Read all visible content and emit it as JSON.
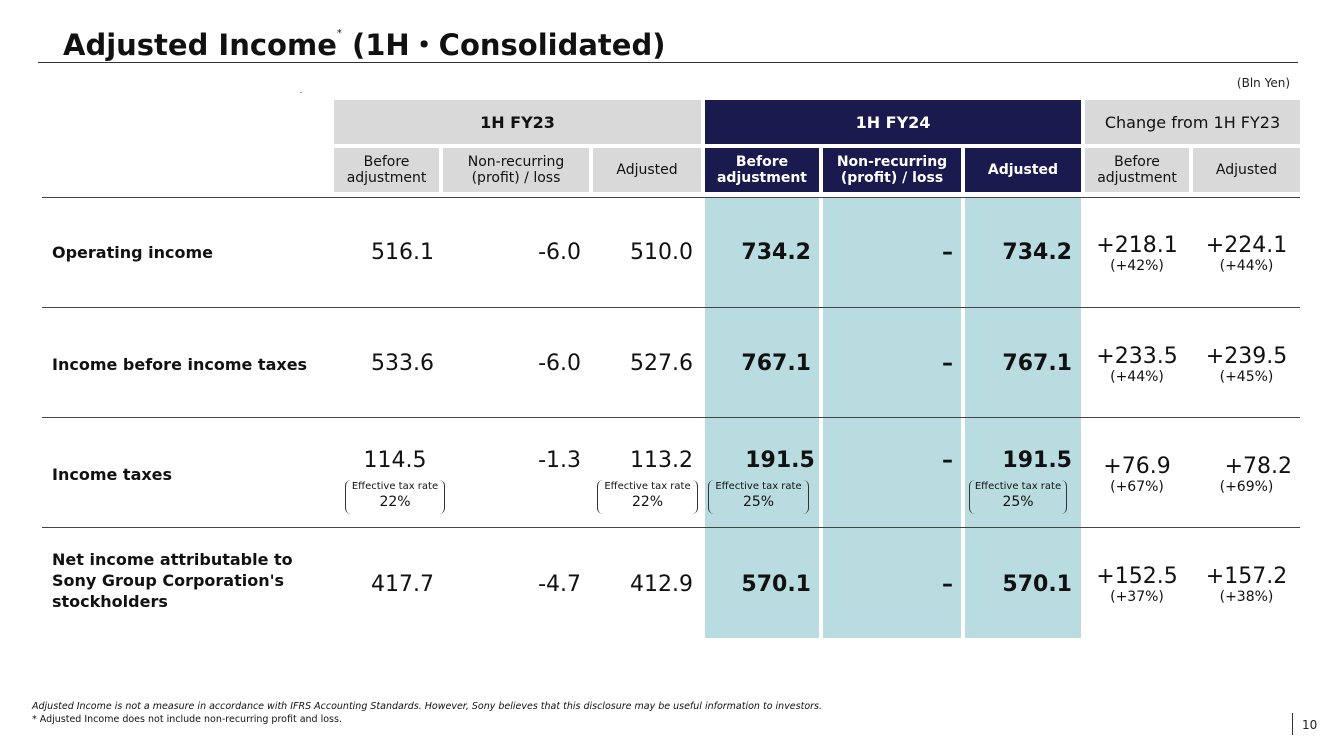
{
  "title": {
    "main": "Adjusted Income",
    "asterisk": "*",
    "suffix": " (1H・Consolidated)"
  },
  "unit": "(Bln Yen)",
  "groups": {
    "fy23": "1H FY23",
    "fy24": "1H FY24",
    "change": "Change from 1H FY23"
  },
  "subheaders": {
    "fy23": [
      "Before adjustment",
      "Non-recurring (profit) / loss",
      "Adjusted"
    ],
    "fy24": [
      "Before adjustment",
      "Non-recurring (profit) / loss",
      "Adjusted"
    ],
    "change": [
      "Before adjustment",
      "Adjusted"
    ]
  },
  "rows": [
    {
      "label": "Operating income",
      "fy23": [
        "516.1",
        "-6.0",
        "510.0"
      ],
      "fy24": [
        "734.2",
        "–",
        "734.2"
      ],
      "change": [
        {
          "value": "+218.1",
          "pct": "(+42%)"
        },
        {
          "value": "+224.1",
          "pct": "(+44%)"
        }
      ]
    },
    {
      "label": "Income before income taxes",
      "fy23": [
        "533.6",
        "-6.0",
        "527.6"
      ],
      "fy24": [
        "767.1",
        "–",
        "767.1"
      ],
      "change": [
        {
          "value": "+233.5",
          "pct": "(+44%)"
        },
        {
          "value": "+239.5",
          "pct": "(+45%)"
        }
      ]
    },
    {
      "label": "Income taxes",
      "fy23": [
        "114.5",
        "-1.3",
        "113.2"
      ],
      "fy24": [
        "191.5",
        "–",
        "191.5"
      ],
      "change": [
        {
          "value": "+76.9",
          "pct": "(+67%)"
        },
        {
          "value": "+78.2",
          "pct": "(+69%)"
        }
      ],
      "tax_rates": {
        "label": "Effective tax rate",
        "fy23_before": "22%",
        "fy23_adjusted": "22%",
        "fy24_before": "25%",
        "fy24_adjusted": "25%"
      }
    },
    {
      "label": "Net income attributable to Sony Group Corporation's stockholders",
      "fy23": [
        "417.7",
        "-4.7",
        "412.9"
      ],
      "fy24": [
        "570.1",
        "–",
        "570.1"
      ],
      "change": [
        {
          "value": "+152.5",
          "pct": "(+37%)"
        },
        {
          "value": "+157.2",
          "pct": "(+38%)"
        }
      ]
    }
  ],
  "footnotes": {
    "line1": "Adjusted Income is not a measure in accordance with IFRS Accounting Standards. However, Sony believes that this disclosure may be useful information to investors.",
    "line2": "* Adjusted Income does not include non-recurring profit and loss."
  },
  "page_number": "10"
}
